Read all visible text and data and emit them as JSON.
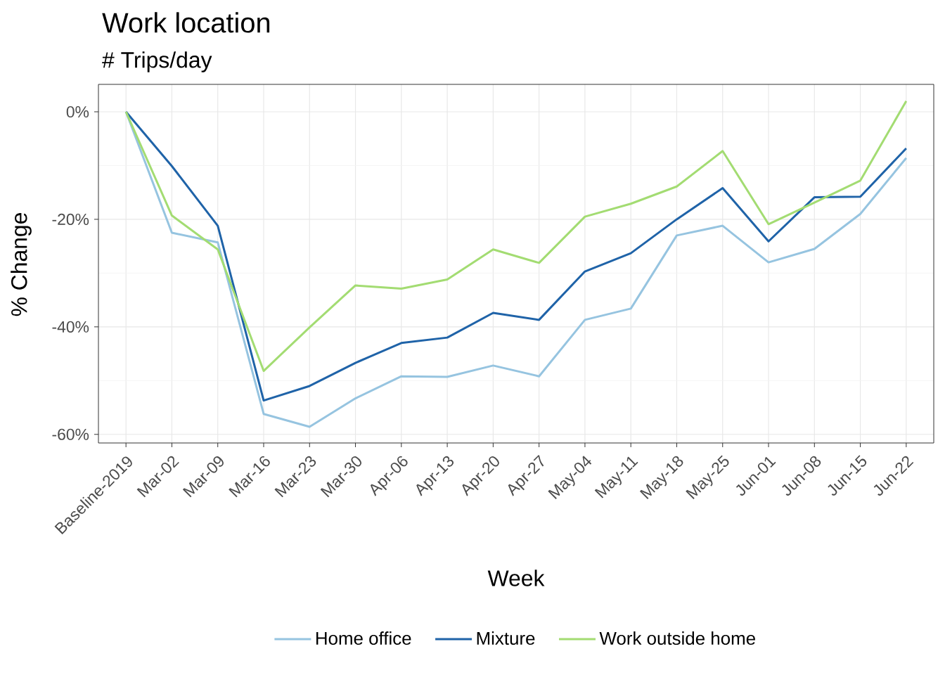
{
  "chart_data": {
    "type": "line",
    "title": "Work location",
    "subtitle": "# Trips/day",
    "xlabel": "Week",
    "ylabel": "% Change",
    "categories": [
      "Baseline-2019",
      "Mar-02",
      "Mar-09",
      "Mar-16",
      "Mar-23",
      "Mar-30",
      "Apr-06",
      "Apr-13",
      "Apr-20",
      "Apr-27",
      "May-04",
      "May-11",
      "May-18",
      "May-25",
      "Jun-01",
      "Jun-08",
      "Jun-15",
      "Jun-22"
    ],
    "series": [
      {
        "name": "Home office",
        "color": "#96c4e0",
        "values": [
          0,
          -22.5,
          -24.3,
          -56.2,
          -58.6,
          -53.3,
          -49.2,
          -49.3,
          -47.2,
          -49.2,
          -38.7,
          -36.6,
          -23.0,
          -21.2,
          -28.0,
          -25.5,
          -19.0,
          -8.6
        ]
      },
      {
        "name": "Mixture",
        "color": "#1f63a8",
        "values": [
          0,
          -10.1,
          -21.2,
          -53.7,
          -51.0,
          -46.7,
          -43.0,
          -42.0,
          -37.4,
          -38.7,
          -29.7,
          -26.3,
          -20.0,
          -14.2,
          -24.1,
          -15.9,
          -15.8,
          -6.8
        ]
      },
      {
        "name": "Work outside home",
        "color": "#a3dc72",
        "values": [
          0,
          -19.3,
          -25.6,
          -48.2,
          -40.1,
          -32.3,
          -32.9,
          -31.2,
          -25.6,
          -28.1,
          -19.5,
          -17.1,
          -13.9,
          -7.3,
          -20.9,
          -16.9,
          -12.8,
          2.0
        ]
      }
    ],
    "ylim": [
      -61.6,
      5.1
    ],
    "yticks": [
      {
        "value": -60,
        "label": "-60%"
      },
      {
        "value": -50,
        "label": null
      },
      {
        "value": -40,
        "label": "-40%"
      },
      {
        "value": -30,
        "label": null
      },
      {
        "value": -20,
        "label": "-20%"
      },
      {
        "value": -10,
        "label": null
      },
      {
        "value": 0,
        "label": "0%"
      }
    ],
    "grid": true,
    "legend": "bottom"
  }
}
